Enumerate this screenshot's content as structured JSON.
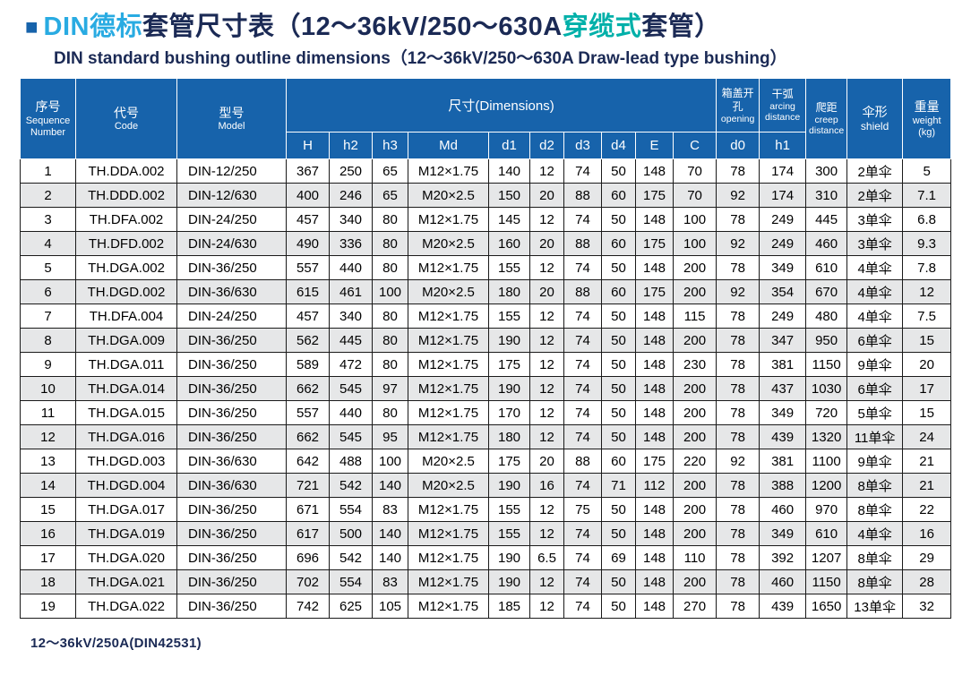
{
  "colors": {
    "header_bg": "#1763ab",
    "row_alt": "#e6e7e8",
    "accent_blue": "#1763ab",
    "accent_cyan": "#29abe2",
    "accent_teal": "#00b0a9",
    "title_dark": "#1b2a55"
  },
  "title": {
    "bullet": "■",
    "accent1": "DIN德标",
    "main1": "套管尺寸表（12～36kV/250～630A",
    "accent2": "穿缆式",
    "main2": "套管）",
    "subtitle": "DIN standard bushing outline dimensions（12～36kV/250～630A Draw-lead type bushing）"
  },
  "footer": {
    "note": "12～36kV/250A(DIN42531)"
  },
  "table": {
    "headers": {
      "sequence_zh": "序号",
      "sequence_en": "Sequence Number",
      "code_zh": "代号",
      "code_en": "Code",
      "model_zh": "型号",
      "model_en": "Model",
      "dimensions": "尺寸(Dimensions)",
      "dim_cols": [
        "H",
        "h2",
        "h3",
        "Md",
        "d1",
        "d2",
        "d3",
        "d4",
        "E",
        "C"
      ],
      "opening_zh": "箱盖开孔",
      "opening_en": "opening",
      "opening_col": "d0",
      "arcing_zh": "干弧",
      "arcing_en": "arcing distance",
      "arcing_col": "h1",
      "creep_zh": "爬距",
      "creep_en": "creep distance",
      "shield_zh": "伞形",
      "shield_en": "shield",
      "weight_zh": "重量",
      "weight_en": "weight (kg)"
    },
    "column_keys": [
      "seq",
      "code",
      "model",
      "H",
      "h2",
      "h3",
      "Md",
      "d1",
      "d2",
      "d3",
      "d4",
      "E",
      "C",
      "d0",
      "h1",
      "creep",
      "shield",
      "weight"
    ],
    "rows": [
      [
        "1",
        "TH.DDA.002",
        "DIN-12/250",
        "367",
        "250",
        "65",
        "M12×1.75",
        "140",
        "12",
        "74",
        "50",
        "148",
        "70",
        "78",
        "174",
        "300",
        "2单伞",
        "5"
      ],
      [
        "2",
        "TH.DDD.002",
        "DIN-12/630",
        "400",
        "246",
        "65",
        "M20×2.5",
        "150",
        "20",
        "88",
        "60",
        "175",
        "70",
        "92",
        "174",
        "310",
        "2单伞",
        "7.1"
      ],
      [
        "3",
        "TH.DFA.002",
        "DIN-24/250",
        "457",
        "340",
        "80",
        "M12×1.75",
        "145",
        "12",
        "74",
        "50",
        "148",
        "100",
        "78",
        "249",
        "445",
        "3单伞",
        "6.8"
      ],
      [
        "4",
        "TH.DFD.002",
        "DIN-24/630",
        "490",
        "336",
        "80",
        "M20×2.5",
        "160",
        "20",
        "88",
        "60",
        "175",
        "100",
        "92",
        "249",
        "460",
        "3单伞",
        "9.3"
      ],
      [
        "5",
        "TH.DGA.002",
        "DIN-36/250",
        "557",
        "440",
        "80",
        "M12×1.75",
        "155",
        "12",
        "74",
        "50",
        "148",
        "200",
        "78",
        "349",
        "610",
        "4单伞",
        "7.8"
      ],
      [
        "6",
        "TH.DGD.002",
        "DIN-36/630",
        "615",
        "461",
        "100",
        "M20×2.5",
        "180",
        "20",
        "88",
        "60",
        "175",
        "200",
        "92",
        "354",
        "670",
        "4单伞",
        "12"
      ],
      [
        "7",
        "TH.DFA.004",
        "DIN-24/250",
        "457",
        "340",
        "80",
        "M12×1.75",
        "155",
        "12",
        "74",
        "50",
        "148",
        "115",
        "78",
        "249",
        "480",
        "4单伞",
        "7.5"
      ],
      [
        "8",
        "TH.DGA.009",
        "DIN-36/250",
        "562",
        "445",
        "80",
        "M12×1.75",
        "190",
        "12",
        "74",
        "50",
        "148",
        "200",
        "78",
        "347",
        "950",
        "6单伞",
        "15"
      ],
      [
        "9",
        "TH.DGA.011",
        "DIN-36/250",
        "589",
        "472",
        "80",
        "M12×1.75",
        "175",
        "12",
        "74",
        "50",
        "148",
        "230",
        "78",
        "381",
        "1150",
        "9单伞",
        "20"
      ],
      [
        "10",
        "TH.DGA.014",
        "DIN-36/250",
        "662",
        "545",
        "97",
        "M12×1.75",
        "190",
        "12",
        "74",
        "50",
        "148",
        "200",
        "78",
        "437",
        "1030",
        "6单伞",
        "17"
      ],
      [
        "11",
        "TH.DGA.015",
        "DIN-36/250",
        "557",
        "440",
        "80",
        "M12×1.75",
        "170",
        "12",
        "74",
        "50",
        "148",
        "200",
        "78",
        "349",
        "720",
        "5单伞",
        "15"
      ],
      [
        "12",
        "TH.DGA.016",
        "DIN-36/250",
        "662",
        "545",
        "95",
        "M12×1.75",
        "180",
        "12",
        "74",
        "50",
        "148",
        "200",
        "78",
        "439",
        "1320",
        "11单伞",
        "24"
      ],
      [
        "13",
        "TH.DGD.003",
        "DIN-36/630",
        "642",
        "488",
        "100",
        "M20×2.5",
        "175",
        "20",
        "88",
        "60",
        "175",
        "220",
        "92",
        "381",
        "1100",
        "9单伞",
        "21"
      ],
      [
        "14",
        "TH.DGD.004",
        "DIN-36/630",
        "721",
        "542",
        "140",
        "M20×2.5",
        "190",
        "16",
        "74",
        "71",
        "112",
        "200",
        "78",
        "388",
        "1200",
        "8单伞",
        "21"
      ],
      [
        "15",
        "TH.DGA.017",
        "DIN-36/250",
        "671",
        "554",
        "83",
        "M12×1.75",
        "155",
        "12",
        "75",
        "50",
        "148",
        "200",
        "78",
        "460",
        "970",
        "8单伞",
        "22"
      ],
      [
        "16",
        "TH.DGA.019",
        "DIN-36/250",
        "617",
        "500",
        "140",
        "M12×1.75",
        "155",
        "12",
        "74",
        "50",
        "148",
        "200",
        "78",
        "349",
        "610",
        "4单伞",
        "16"
      ],
      [
        "17",
        "TH.DGA.020",
        "DIN-36/250",
        "696",
        "542",
        "140",
        "M12×1.75",
        "190",
        "6.5",
        "74",
        "69",
        "148",
        "110",
        "78",
        "392",
        "1207",
        "8单伞",
        "29"
      ],
      [
        "18",
        "TH.DGA.021",
        "DIN-36/250",
        "702",
        "554",
        "83",
        "M12×1.75",
        "190",
        "12",
        "74",
        "50",
        "148",
        "200",
        "78",
        "460",
        "1150",
        "8单伞",
        "28"
      ],
      [
        "19",
        "TH.DGA.022",
        "DIN-36/250",
        "742",
        "625",
        "105",
        "M12×1.75",
        "185",
        "12",
        "74",
        "50",
        "148",
        "270",
        "78",
        "439",
        "1650",
        "13单伞",
        "32"
      ]
    ]
  }
}
